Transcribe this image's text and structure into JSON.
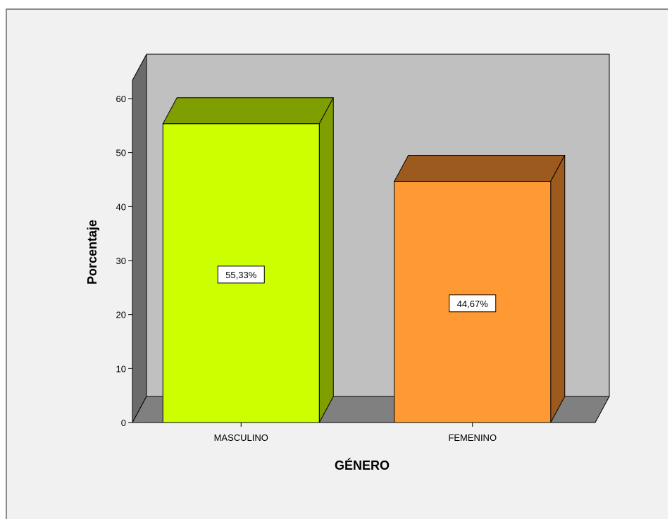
{
  "chart_data": {
    "type": "bar",
    "style": "3d",
    "categories": [
      "MASCULINO",
      "FEMENINO"
    ],
    "values": [
      55.33,
      44.67
    ],
    "data_labels": [
      "55,33%",
      "44,67%"
    ],
    "colors": {
      "bars": [
        "#ccff00",
        "#ff9933"
      ],
      "bar_tops": [
        "#7f9e00",
        "#9c5a1f"
      ],
      "bar_sides": [
        "#7f9e00",
        "#9c5a1f"
      ],
      "back_wall": "#c0c0c0",
      "side_wall": "#6b6b6b",
      "floor": "#808080"
    },
    "xlabel": "GÉNERO",
    "ylabel": "Porcentaje",
    "ylim": [
      0,
      60
    ],
    "yticks": [
      "0",
      "10",
      "20",
      "30",
      "40",
      "50",
      "60"
    ],
    "grid": false,
    "legend": "none"
  }
}
